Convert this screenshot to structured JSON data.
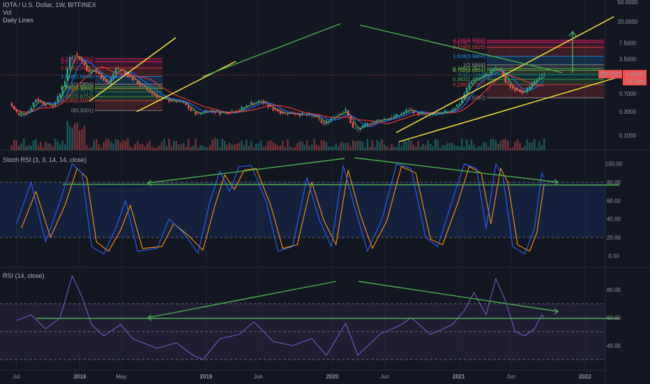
{
  "header": {
    "symbol": "IOTA / U.S. Dollar, 1W, BITFINEX",
    "vol": "Vol",
    "daily": "Daily Lines"
  },
  "panes": {
    "stoch_title": "Stoch RSI (3, 3, 14, 14, close)",
    "rsi_title": "RSI (14, close)"
  },
  "price_tag": {
    "ticker": "IOTUSD",
    "price": "1.6826",
    "countdown": "2d 14h"
  },
  "colors": {
    "up": "#26a69a",
    "down": "#ef5350",
    "trend": "#ffeb3b",
    "arrow": "#4caf50",
    "k": "#2962ff",
    "d": "#ff9800",
    "rsi": "#7e57c2",
    "ma_red": "#e53935",
    "ma_blue": "#2962ff",
    "ma_green": "#4caf50"
  },
  "chart_data": [
    {
      "type": "line",
      "title": "IOTA / U.S. Dollar, 1W, BITFINEX",
      "scale": "log",
      "ylim": [
        0.07,
        50
      ],
      "ticks": [
        "50.0000",
        "20.0000",
        "7.5000",
        "3.5000",
        "1.6000",
        "0.7000",
        "0.3000",
        "0.1000"
      ],
      "x_tick_labels": [
        "Jul",
        "2018",
        "May",
        "2019",
        "Jun",
        "2020",
        "Jun",
        "2021",
        "Jun",
        "2022"
      ],
      "close_series": [
        {
          "x": "2017-06-18",
          "y": 0.45
        },
        {
          "x": "2017-07-16",
          "y": 0.25
        },
        {
          "x": "2017-08-13",
          "y": 0.32
        },
        {
          "x": "2017-09-03",
          "y": 0.55
        },
        {
          "x": "2017-09-24",
          "y": 0.45
        },
        {
          "x": "2017-10-22",
          "y": 0.4
        },
        {
          "x": "2017-11-12",
          "y": 0.7
        },
        {
          "x": "2017-11-26",
          "y": 1.3
        },
        {
          "x": "2017-12-10",
          "y": 3.8
        },
        {
          "x": "2017-12-24",
          "y": 4.5
        },
        {
          "x": "2018-01-07",
          "y": 3.6
        },
        {
          "x": "2018-01-21",
          "y": 2.6
        },
        {
          "x": "2018-02-04",
          "y": 1.8
        },
        {
          "x": "2018-02-18",
          "y": 2.1
        },
        {
          "x": "2018-03-11",
          "y": 1.5
        },
        {
          "x": "2018-04-01",
          "y": 1.1
        },
        {
          "x": "2018-04-22",
          "y": 2.3
        },
        {
          "x": "2018-05-13",
          "y": 2.0
        },
        {
          "x": "2018-06-03",
          "y": 1.5
        },
        {
          "x": "2018-07-01",
          "y": 1.05
        },
        {
          "x": "2018-08-05",
          "y": 0.7
        },
        {
          "x": "2018-09-02",
          "y": 0.55
        },
        {
          "x": "2018-10-07",
          "y": 0.5
        },
        {
          "x": "2018-11-04",
          "y": 0.45
        },
        {
          "x": "2018-11-25",
          "y": 0.32
        },
        {
          "x": "2018-12-16",
          "y": 0.27
        },
        {
          "x": "2019-01-13",
          "y": 0.33
        },
        {
          "x": "2019-02-17",
          "y": 0.29
        },
        {
          "x": "2019-03-17",
          "y": 0.3
        },
        {
          "x": "2019-04-14",
          "y": 0.33
        },
        {
          "x": "2019-05-19",
          "y": 0.45
        },
        {
          "x": "2019-06-16",
          "y": 0.5
        },
        {
          "x": "2019-07-14",
          "y": 0.36
        },
        {
          "x": "2019-08-18",
          "y": 0.29
        },
        {
          "x": "2019-09-22",
          "y": 0.28
        },
        {
          "x": "2019-10-20",
          "y": 0.26
        },
        {
          "x": "2019-11-17",
          "y": 0.24
        },
        {
          "x": "2019-12-15",
          "y": 0.17
        },
        {
          "x": "2020-01-19",
          "y": 0.27
        },
        {
          "x": "2020-02-16",
          "y": 0.32
        },
        {
          "x": "2020-03-08",
          "y": 0.14
        },
        {
          "x": "2020-03-22",
          "y": 0.13
        },
        {
          "x": "2020-04-19",
          "y": 0.17
        },
        {
          "x": "2020-05-17",
          "y": 0.2
        },
        {
          "x": "2020-06-14",
          "y": 0.22
        },
        {
          "x": "2020-07-19",
          "y": 0.26
        },
        {
          "x": "2020-08-16",
          "y": 0.34
        },
        {
          "x": "2020-09-13",
          "y": 0.28
        },
        {
          "x": "2020-10-18",
          "y": 0.26
        },
        {
          "x": "2020-11-15",
          "y": 0.27
        },
        {
          "x": "2020-12-13",
          "y": 0.32
        },
        {
          "x": "2021-01-10",
          "y": 0.45
        },
        {
          "x": "2021-02-07",
          "y": 1.1
        },
        {
          "x": "2021-02-21",
          "y": 1.4
        },
        {
          "x": "2021-03-14",
          "y": 1.5
        },
        {
          "x": "2021-04-04",
          "y": 1.8
        },
        {
          "x": "2021-04-18",
          "y": 2.3
        },
        {
          "x": "2021-05-09",
          "y": 2.1
        },
        {
          "x": "2021-05-23",
          "y": 1.2
        },
        {
          "x": "2021-06-13",
          "y": 0.9
        },
        {
          "x": "2021-06-27",
          "y": 0.85
        },
        {
          "x": "2021-07-18",
          "y": 0.75
        },
        {
          "x": "2021-08-01",
          "y": 0.95
        },
        {
          "x": "2021-08-15",
          "y": 1.2
        },
        {
          "x": "2021-08-29",
          "y": 1.6
        },
        {
          "x": "2021-09-05",
          "y": 1.68
        }
      ],
      "fib_left": [
        {
          "label": "4.236(3.5781)",
          "value": 3.5781
        },
        {
          "label": "3.618(3.1003)",
          "value": 3.1003
        },
        {
          "label": "2.618(2.3341)",
          "value": 2.3341
        },
        {
          "label": "1.618(1.5648)",
          "value": 1.5648
        },
        {
          "label": "1(1.0894)",
          "value": 1.0894
        },
        {
          "label": "0.786(0.9602)",
          "value": 0.9602
        },
        {
          "label": "0.702(0.9002)",
          "value": 0.9002
        },
        {
          "label": "0.5(0.7513)",
          "value": 0.7513
        },
        {
          "label": "0.382(0.6154)",
          "value": 0.6154
        },
        {
          "label": "0.236(0.5047)",
          "value": 0.5047
        },
        {
          "label": "0(0.3201)",
          "value": 0.3201
        }
      ],
      "fib_right": [
        {
          "label": "4.236(8.5002)",
          "value": 8.5002
        },
        {
          "label": "3.618(7.7165)",
          "value": 7.7165
        },
        {
          "label": "2.618(6.0925)",
          "value": 6.0925
        },
        {
          "label": "1.618(3.9864)",
          "value": 3.9864
        },
        {
          "label": "1(2.6848)",
          "value": 2.6848
        },
        {
          "label": "0.786(2.2572)",
          "value": 2.2572
        },
        {
          "label": "0.702(2.0851)",
          "value": 2.0851
        },
        {
          "label": "0.5(1.7065)",
          "value": 1.7065
        },
        {
          "label": "0.382(1.3832)",
          "value": 1.3832
        },
        {
          "label": "0.236(1.0757)",
          "value": 1.0757
        },
        {
          "label": "0(0.5787)",
          "value": 0.5787
        }
      ]
    },
    {
      "type": "line",
      "title": "Stoch RSI (3, 3, 14, 14, close)",
      "ylim": [
        -5,
        105
      ],
      "ticks": [
        "100.00",
        "80.00",
        "60.00",
        "40.00",
        "20.00",
        "0.00"
      ],
      "bands": [
        80,
        20
      ],
      "k": [
        {
          "x": "2017-07-02",
          "y": 35
        },
        {
          "x": "2017-08-13",
          "y": 80
        },
        {
          "x": "2017-09-24",
          "y": 15
        },
        {
          "x": "2017-11-05",
          "y": 60
        },
        {
          "x": "2017-12-10",
          "y": 100
        },
        {
          "x": "2018-01-07",
          "y": 90
        },
        {
          "x": "2018-02-04",
          "y": 10
        },
        {
          "x": "2018-03-11",
          "y": 2
        },
        {
          "x": "2018-04-15",
          "y": 30
        },
        {
          "x": "2018-05-13",
          "y": 60
        },
        {
          "x": "2018-06-17",
          "y": 5
        },
        {
          "x": "2018-08-12",
          "y": 8
        },
        {
          "x": "2018-09-16",
          "y": 40
        },
        {
          "x": "2018-10-28",
          "y": 25
        },
        {
          "x": "2018-12-09",
          "y": 3
        },
        {
          "x": "2019-01-13",
          "y": 60
        },
        {
          "x": "2019-02-10",
          "y": 92
        },
        {
          "x": "2019-03-10",
          "y": 70
        },
        {
          "x": "2019-04-07",
          "y": 97
        },
        {
          "x": "2019-05-12",
          "y": 98
        },
        {
          "x": "2019-06-23",
          "y": 60
        },
        {
          "x": "2019-07-28",
          "y": 5
        },
        {
          "x": "2019-09-08",
          "y": 10
        },
        {
          "x": "2019-10-20",
          "y": 85
        },
        {
          "x": "2019-11-24",
          "y": 40
        },
        {
          "x": "2019-12-29",
          "y": 10
        },
        {
          "x": "2020-02-02",
          "y": 98
        },
        {
          "x": "2020-03-08",
          "y": 50
        },
        {
          "x": "2020-04-12",
          "y": 5
        },
        {
          "x": "2020-05-24",
          "y": 40
        },
        {
          "x": "2020-07-05",
          "y": 100
        },
        {
          "x": "2020-08-16",
          "y": 95
        },
        {
          "x": "2020-09-27",
          "y": 20
        },
        {
          "x": "2020-11-01",
          "y": 10
        },
        {
          "x": "2020-12-13",
          "y": 60
        },
        {
          "x": "2021-01-17",
          "y": 100
        },
        {
          "x": "2021-02-21",
          "y": 95
        },
        {
          "x": "2021-03-21",
          "y": 30
        },
        {
          "x": "2021-04-18",
          "y": 100
        },
        {
          "x": "2021-05-09",
          "y": 85
        },
        {
          "x": "2021-06-06",
          "y": 10
        },
        {
          "x": "2021-07-11",
          "y": 2
        },
        {
          "x": "2021-08-08",
          "y": 30
        },
        {
          "x": "2021-08-29",
          "y": 90
        },
        {
          "x": "2021-09-05",
          "y": 85
        }
      ],
      "d": [
        {
          "x": "2017-07-16",
          "y": 30
        },
        {
          "x": "2017-08-27",
          "y": 70
        },
        {
          "x": "2017-10-08",
          "y": 20
        },
        {
          "x": "2017-11-19",
          "y": 55
        },
        {
          "x": "2017-12-24",
          "y": 95
        },
        {
          "x": "2018-01-21",
          "y": 85
        },
        {
          "x": "2018-02-18",
          "y": 15
        },
        {
          "x": "2018-03-25",
          "y": 5
        },
        {
          "x": "2018-04-29",
          "y": 28
        },
        {
          "x": "2018-05-27",
          "y": 55
        },
        {
          "x": "2018-07-01",
          "y": 8
        },
        {
          "x": "2018-08-26",
          "y": 10
        },
        {
          "x": "2018-09-30",
          "y": 35
        },
        {
          "x": "2018-11-11",
          "y": 22
        },
        {
          "x": "2018-12-23",
          "y": 6
        },
        {
          "x": "2019-01-27",
          "y": 55
        },
        {
          "x": "2019-02-24",
          "y": 88
        },
        {
          "x": "2019-03-24",
          "y": 72
        },
        {
          "x": "2019-04-21",
          "y": 93
        },
        {
          "x": "2019-05-26",
          "y": 95
        },
        {
          "x": "2019-07-07",
          "y": 55
        },
        {
          "x": "2019-08-11",
          "y": 8
        },
        {
          "x": "2019-09-22",
          "y": 12
        },
        {
          "x": "2019-11-03",
          "y": 80
        },
        {
          "x": "2019-12-08",
          "y": 38
        },
        {
          "x": "2020-01-12",
          "y": 12
        },
        {
          "x": "2020-02-16",
          "y": 93
        },
        {
          "x": "2020-03-22",
          "y": 45
        },
        {
          "x": "2020-04-26",
          "y": 8
        },
        {
          "x": "2020-06-07",
          "y": 38
        },
        {
          "x": "2020-07-19",
          "y": 97
        },
        {
          "x": "2020-08-30",
          "y": 90
        },
        {
          "x": "2020-10-11",
          "y": 18
        },
        {
          "x": "2020-11-15",
          "y": 12
        },
        {
          "x": "2020-12-27",
          "y": 55
        },
        {
          "x": "2021-01-31",
          "y": 97
        },
        {
          "x": "2021-03-07",
          "y": 90
        },
        {
          "x": "2021-04-04",
          "y": 35
        },
        {
          "x": "2021-05-02",
          "y": 95
        },
        {
          "x": "2021-05-23",
          "y": 80
        },
        {
          "x": "2021-06-20",
          "y": 12
        },
        {
          "x": "2021-07-25",
          "y": 5
        },
        {
          "x": "2021-08-15",
          "y": 25
        },
        {
          "x": "2021-09-05",
          "y": 78
        }
      ]
    },
    {
      "type": "line",
      "title": "RSI (14, close)",
      "ylim": [
        25,
        100
      ],
      "ticks": [
        "80.00",
        "60.00",
        "40.00"
      ],
      "bands": [
        70,
        50,
        30
      ],
      "rsi": [
        {
          "x": "2017-07-02",
          "y": 58
        },
        {
          "x": "2017-08-13",
          "y": 62
        },
        {
          "x": "2017-09-24",
          "y": 52
        },
        {
          "x": "2017-11-05",
          "y": 60
        },
        {
          "x": "2017-12-10",
          "y": 90
        },
        {
          "x": "2018-01-07",
          "y": 75
        },
        {
          "x": "2018-02-04",
          "y": 55
        },
        {
          "x": "2018-03-11",
          "y": 47
        },
        {
          "x": "2018-04-29",
          "y": 55
        },
        {
          "x": "2018-06-03",
          "y": 45
        },
        {
          "x": "2018-08-12",
          "y": 38
        },
        {
          "x": "2018-10-07",
          "y": 42
        },
        {
          "x": "2018-11-25",
          "y": 33
        },
        {
          "x": "2018-12-23",
          "y": 30
        },
        {
          "x": "2019-02-10",
          "y": 45
        },
        {
          "x": "2019-04-07",
          "y": 48
        },
        {
          "x": "2019-05-19",
          "y": 57
        },
        {
          "x": "2019-07-14",
          "y": 43
        },
        {
          "x": "2019-09-08",
          "y": 40
        },
        {
          "x": "2019-11-03",
          "y": 45
        },
        {
          "x": "2019-12-15",
          "y": 33
        },
        {
          "x": "2020-02-09",
          "y": 56
        },
        {
          "x": "2020-03-15",
          "y": 33
        },
        {
          "x": "2020-05-17",
          "y": 48
        },
        {
          "x": "2020-07-19",
          "y": 55
        },
        {
          "x": "2020-08-16",
          "y": 60
        },
        {
          "x": "2020-10-11",
          "y": 48
        },
        {
          "x": "2020-12-13",
          "y": 55
        },
        {
          "x": "2021-01-17",
          "y": 65
        },
        {
          "x": "2021-02-14",
          "y": 78
        },
        {
          "x": "2021-03-21",
          "y": 62
        },
        {
          "x": "2021-04-18",
          "y": 88
        },
        {
          "x": "2021-05-16",
          "y": 72
        },
        {
          "x": "2021-06-13",
          "y": 50
        },
        {
          "x": "2021-07-11",
          "y": 47
        },
        {
          "x": "2021-08-08",
          "y": 52
        },
        {
          "x": "2021-08-29",
          "y": 62
        },
        {
          "x": "2021-09-05",
          "y": 60
        }
      ]
    }
  ]
}
